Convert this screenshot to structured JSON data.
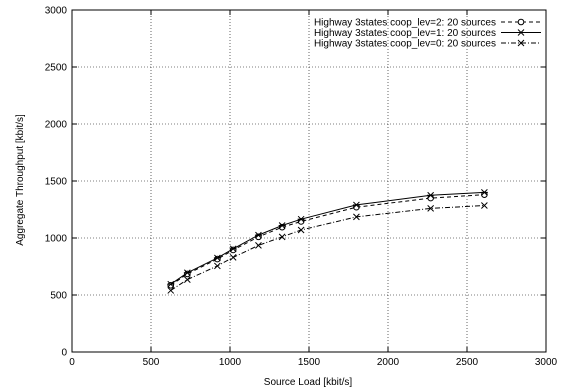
{
  "chart_data": {
    "type": "line",
    "title": "",
    "xlabel": "Source Load [kbit/s]",
    "ylabel": "Aggregate Throughput [kbit/s]",
    "xlim": [
      0,
      3000
    ],
    "ylim": [
      0,
      3000
    ],
    "x_ticks": [
      0,
      500,
      1000,
      1500,
      2000,
      2500,
      3000
    ],
    "y_ticks": [
      0,
      500,
      1000,
      1500,
      2000,
      2500,
      3000
    ],
    "grid": true,
    "legend_position": "top-right",
    "series": [
      {
        "name": "Highway 3states coop_lev=2: 20 sources",
        "marker": "circle",
        "dash": "dashed",
        "x": [
          625,
          730,
          920,
          1020,
          1180,
          1330,
          1450,
          1800,
          2270,
          2610
        ],
        "y": [
          585,
          685,
          815,
          895,
          1010,
          1095,
          1145,
          1270,
          1350,
          1380
        ]
      },
      {
        "name": "Highway 3states coop_lev=1: 20 sources",
        "marker": "star",
        "dash": "solid",
        "x": [
          625,
          730,
          920,
          1020,
          1180,
          1330,
          1450,
          1800,
          2270,
          2610
        ],
        "y": [
          595,
          695,
          825,
          905,
          1025,
          1110,
          1165,
          1290,
          1375,
          1400
        ]
      },
      {
        "name": "Highway 3states coop_lev=0: 20 sources",
        "marker": "x",
        "dash": "dashdot",
        "x": [
          625,
          730,
          920,
          1020,
          1180,
          1330,
          1450,
          1800,
          2270,
          2610
        ],
        "y": [
          540,
          635,
          755,
          830,
          935,
          1010,
          1070,
          1185,
          1260,
          1285
        ]
      }
    ]
  }
}
